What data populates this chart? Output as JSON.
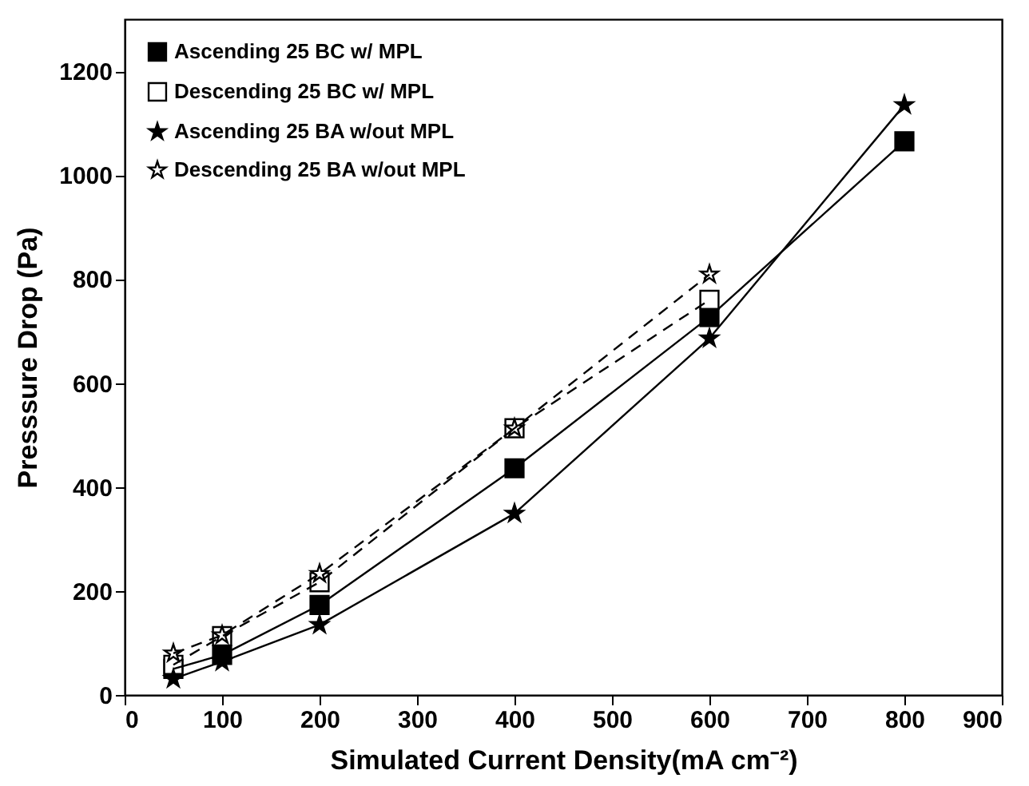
{
  "chart_data": {
    "type": "line",
    "xlabel": "Simulated Current Density(mA cm⁻²)",
    "ylabel": "Presssure Drop (Pa)",
    "x": [
      50,
      100,
      200,
      400,
      600,
      800
    ],
    "series": [
      {
        "name": "Ascending   25 BC w/ MPL",
        "color": "#000000",
        "marker": "square",
        "line_style": "solid",
        "values": [
          50,
          77,
          173,
          436,
          727,
          1065
        ]
      },
      {
        "name": "Descending 25 BC w/ MPL",
        "color": "#000000",
        "marker": "square",
        "line_style": "dashed",
        "x": [
          50,
          100,
          200,
          400,
          600
        ],
        "values": [
          58,
          113,
          217,
          513,
          760
        ]
      },
      {
        "name": "Ascending   25 BA w/out MPL",
        "color": "#000000",
        "marker": "star",
        "line_style": "solid",
        "values": [
          31,
          64,
          135,
          349,
          686,
          1135
        ]
      },
      {
        "name": "Descending 25 BA w/out MPL",
        "color": "#000000",
        "marker": "star",
        "line_style": "dashed",
        "x": [
          50,
          100,
          200,
          400,
          600
        ],
        "values": [
          80,
          115,
          233,
          513,
          809
        ]
      }
    ],
    "xlim": [
      0,
      900
    ],
    "xticks": [
      0,
      100,
      200,
      300,
      400,
      500,
      600,
      700,
      800,
      900
    ],
    "ylim": [
      0,
      1300
    ],
    "yticks": [
      0,
      200,
      400,
      600,
      800,
      1000,
      1200
    ],
    "grid": false,
    "legend": "top left"
  }
}
